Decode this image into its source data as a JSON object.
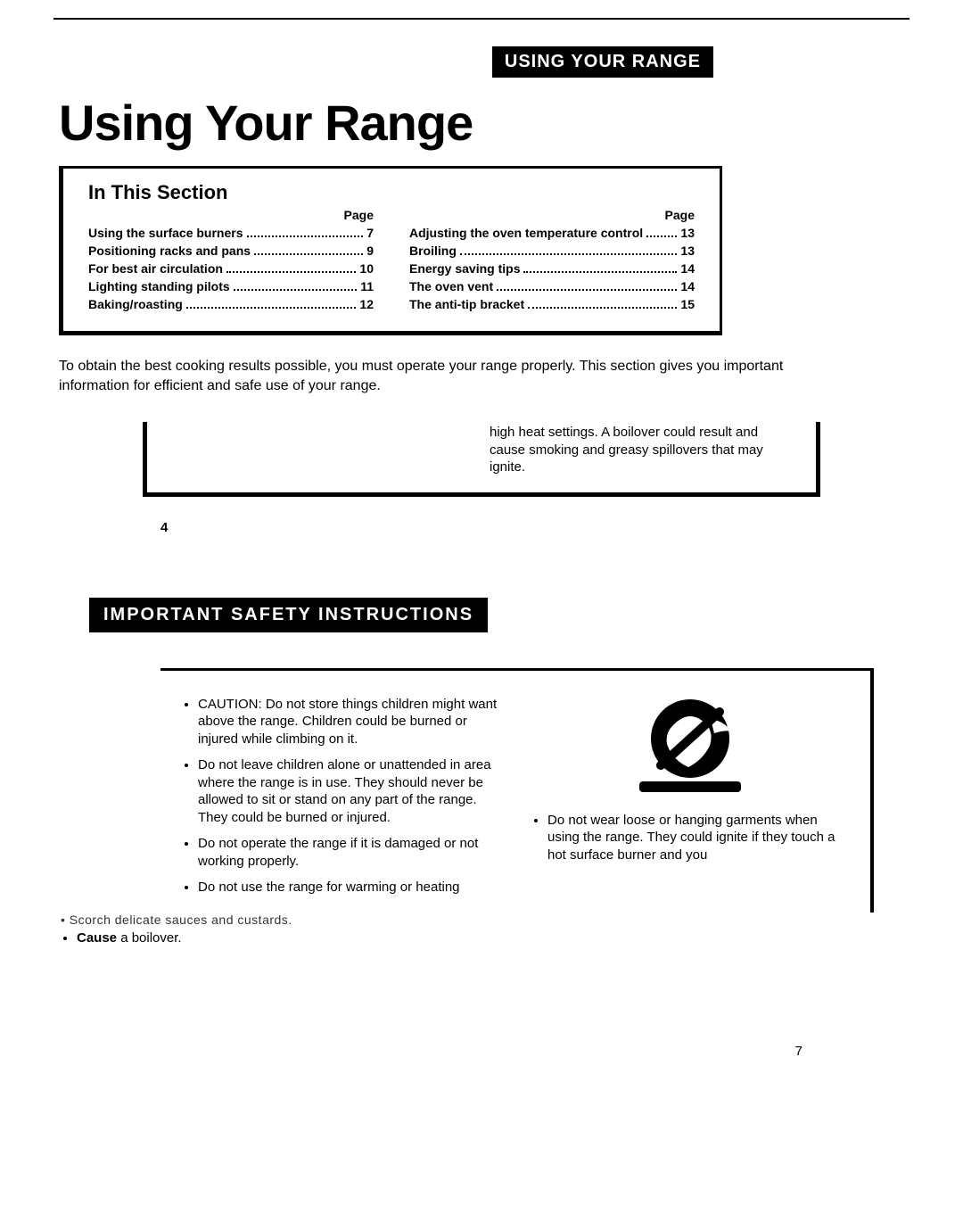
{
  "header_label": "USING YOUR RANGE",
  "main_title": "Using Your Range",
  "toc": {
    "section_title": "In This Section",
    "page_word": "Page",
    "left": [
      {
        "label": "Using the surface burners",
        "page": "7"
      },
      {
        "label": "Positioning racks and pans",
        "page": "9"
      },
      {
        "label": "For best air circulation",
        "page": "10"
      },
      {
        "label": "Lighting standing pilots",
        "page": "11"
      },
      {
        "label": "Baking/roasting",
        "page": "12"
      }
    ],
    "right": [
      {
        "label": "Adjusting the oven temperature control",
        "page": "13"
      },
      {
        "label": "Broiling",
        "page": "13"
      },
      {
        "label": "Energy saving tips",
        "page": "14"
      },
      {
        "label": "The oven vent",
        "page": "14"
      },
      {
        "label": "The anti-tip bracket",
        "page": "15"
      }
    ]
  },
  "intro_text": "To obtain the best cooking results possible, you must operate your range properly. This section gives you important information for efficient and safe use of your range.",
  "warn_fragment": "high heat settings. A boilover could result and cause smoking and greasy spillovers that may ignite.",
  "page_num_upper": "4",
  "safety_label": "IMPORTANT SAFETY INSTRUCTIONS",
  "safety_left": [
    "CAUTION: Do not store things children might want above the range. Children could be burned or injured while climbing on it.",
    "Do not leave children alone or unattended in area where the range is in use. They should never be allowed to sit or stand on any part of the range. They could be burned or injured.",
    "Do not operate the range if it is damaged or not working properly.",
    "Do not use the range for warming or heating"
  ],
  "safety_right_text": "Do not wear loose or hanging garments when using the range. They could ignite if they touch a hot surface burner and you",
  "loose_fragment": "• Scorch delicate sauces and custards.",
  "loose_bullet_bold": "Cause",
  "loose_bullet_rest": " a boilover.",
  "page_num_lower": "7",
  "colors": {
    "ink": "#000000",
    "paper": "#ffffff"
  },
  "icon": {
    "bg": "#000000",
    "fg": "#ffffff",
    "width": 150,
    "height": 110
  }
}
